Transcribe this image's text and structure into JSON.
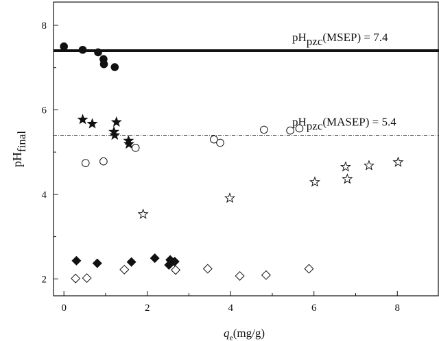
{
  "chart_data": {
    "type": "scatter",
    "xlabel": {
      "main": "q",
      "sub": "e",
      "unit": "(mg/g)"
    },
    "ylabel": {
      "main": "pH",
      "sub": "final"
    },
    "xlim": [
      -0.25,
      9.0
    ],
    "ylim": [
      1.6,
      8.55
    ],
    "xticks": [
      0,
      2,
      4,
      6,
      8
    ],
    "yticks": [
      2,
      4,
      6,
      8
    ],
    "grid": false,
    "reference_lines": [
      {
        "label_main": "pH",
        "label_sub": "pzc",
        "label_tail": "(MSEP) = 7.4",
        "y": 7.4,
        "style": "solid-thick"
      },
      {
        "label_main": "pH",
        "label_sub": "pzc",
        "label_tail": "(MASEP) = 5.4",
        "y": 5.4,
        "style": "dash-dot-thin"
      }
    ],
    "series": [
      {
        "marker": "circle",
        "filled": true,
        "points": [
          [
            0.0,
            7.5
          ],
          [
            0.45,
            7.42
          ],
          [
            0.82,
            7.36
          ],
          [
            0.95,
            7.2
          ],
          [
            0.96,
            7.08
          ],
          [
            1.22,
            7.01
          ]
        ]
      },
      {
        "marker": "star",
        "filled": true,
        "points": [
          [
            0.45,
            5.77
          ],
          [
            0.68,
            5.67
          ],
          [
            1.22,
            5.4
          ],
          [
            1.26,
            5.71
          ],
          [
            1.2,
            5.48
          ],
          [
            1.55,
            5.27
          ],
          [
            1.56,
            5.19
          ]
        ]
      },
      {
        "marker": "circle",
        "filled": false,
        "points": [
          [
            0.52,
            4.74
          ],
          [
            0.95,
            4.78
          ],
          [
            1.72,
            5.1
          ],
          [
            3.6,
            5.3
          ],
          [
            3.75,
            5.22
          ],
          [
            4.8,
            5.53
          ],
          [
            5.43,
            5.51
          ],
          [
            5.65,
            5.56
          ]
        ]
      },
      {
        "marker": "star",
        "filled": false,
        "points": [
          [
            1.9,
            3.53
          ],
          [
            3.98,
            3.91
          ],
          [
            6.02,
            4.29
          ],
          [
            6.76,
            4.65
          ],
          [
            6.8,
            4.36
          ],
          [
            7.32,
            4.68
          ],
          [
            8.02,
            4.76
          ]
        ]
      },
      {
        "marker": "diamond",
        "filled": true,
        "points": [
          [
            0.3,
            2.43
          ],
          [
            0.8,
            2.37
          ],
          [
            1.62,
            2.4
          ],
          [
            2.18,
            2.49
          ],
          [
            2.52,
            2.33
          ],
          [
            2.55,
            2.45
          ],
          [
            2.66,
            2.41
          ]
        ]
      },
      {
        "marker": "diamond",
        "filled": false,
        "points": [
          [
            0.28,
            2.01
          ],
          [
            0.55,
            2.02
          ],
          [
            1.45,
            2.22
          ],
          [
            2.68,
            2.21
          ],
          [
            3.45,
            2.24
          ],
          [
            4.22,
            2.07
          ],
          [
            4.85,
            2.09
          ],
          [
            5.88,
            2.24
          ]
        ]
      }
    ]
  }
}
